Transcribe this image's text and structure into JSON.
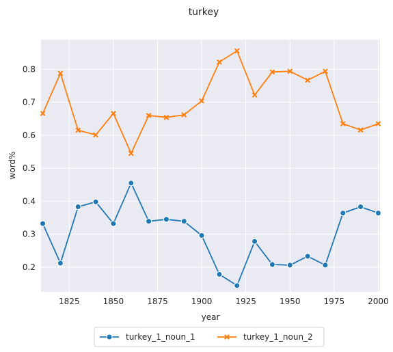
{
  "chart_data": {
    "type": "line",
    "title": "turkey",
    "xlabel": "year",
    "ylabel": "word%",
    "xlim": [
      1809,
      2001
    ],
    "ylim": [
      0.125,
      0.89
    ],
    "xticks": [
      1825,
      1850,
      1875,
      1900,
      1925,
      1950,
      1975,
      2000
    ],
    "yticks": [
      0.2,
      0.3,
      0.4,
      0.5,
      0.6,
      0.7,
      0.8
    ],
    "grid": true,
    "legend_position": "bottom-center",
    "x": [
      1810,
      1820,
      1830,
      1840,
      1850,
      1860,
      1870,
      1880,
      1890,
      1900,
      1910,
      1920,
      1930,
      1940,
      1950,
      1960,
      1970,
      1980,
      1990,
      2000
    ],
    "series": [
      {
        "name": "turkey_1_noun_1",
        "color": "#1f77b4",
        "marker": "circle",
        "values": [
          0.332,
          0.212,
          0.383,
          0.398,
          0.332,
          0.455,
          0.339,
          0.345,
          0.339,
          0.296,
          0.178,
          0.144,
          0.278,
          0.208,
          0.206,
          0.233,
          0.206,
          0.364,
          0.383,
          0.364
        ]
      },
      {
        "name": "turkey_1_noun_2",
        "color": "#ff7f0e",
        "marker": "x",
        "values": [
          0.666,
          0.788,
          0.615,
          0.601,
          0.666,
          0.545,
          0.66,
          0.654,
          0.662,
          0.704,
          0.822,
          0.856,
          0.722,
          0.792,
          0.794,
          0.767,
          0.794,
          0.635,
          0.616,
          0.635
        ]
      }
    ]
  }
}
